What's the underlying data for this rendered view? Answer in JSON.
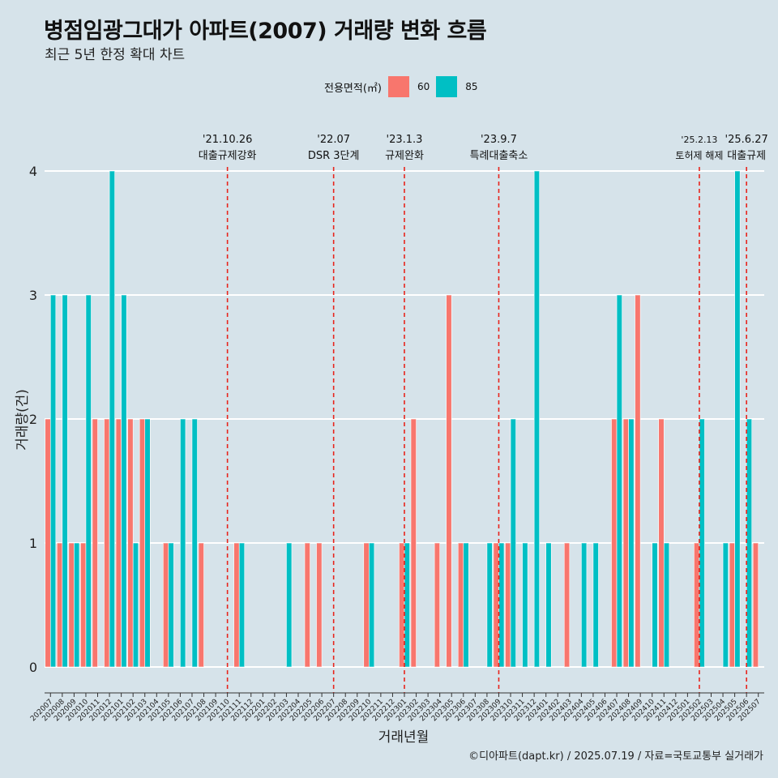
{
  "title": "병점임광그대가 아파트(2007) 거래량 변화 흐름",
  "subtitle": "최근 5년 한정 확대 차트",
  "legend": {
    "title": "전용면적(㎡)",
    "items": [
      {
        "label": "60",
        "color": "#f8766d"
      },
      {
        "label": "85",
        "color": "#00bfc4"
      }
    ]
  },
  "caption": "©디아파트(dapt.kr) / 2025.07.19 / 자료=국토교통부 실거래가",
  "chart_data": {
    "type": "bar",
    "title": "병점임광그대가 아파트(2007) 거래량 변화 흐름",
    "subtitle": "최근 5년 한정 확대 차트",
    "xlabel": "거래년월",
    "ylabel": "거래량(건)",
    "ylim": [
      0,
      4
    ],
    "yticks": [
      0,
      1,
      2,
      3,
      4
    ],
    "grid": true,
    "legend_position": "top",
    "categories": [
      "202007",
      "202008",
      "202009",
      "202010",
      "202011",
      "202012",
      "202101",
      "202102",
      "202103",
      "202104",
      "202105",
      "202106",
      "202107",
      "202108",
      "202109",
      "202110",
      "202111",
      "202112",
      "202201",
      "202202",
      "202203",
      "202204",
      "202205",
      "202206",
      "202207",
      "202208",
      "202209",
      "202210",
      "202211",
      "202212",
      "202301",
      "202302",
      "202303",
      "202304",
      "202305",
      "202306",
      "202307",
      "202308",
      "202309",
      "202310",
      "202311",
      "202312",
      "202401",
      "202402",
      "202403",
      "202404",
      "202405",
      "202406",
      "202407",
      "202408",
      "202409",
      "202410",
      "202411",
      "202412",
      "202501",
      "202502",
      "202503",
      "202504",
      "202505",
      "202506",
      "202507"
    ],
    "series": [
      {
        "name": "60",
        "color": "#f8766d",
        "values": [
          2,
          1,
          1,
          1,
          2,
          2,
          2,
          2,
          2,
          0,
          1,
          0,
          0,
          1,
          0,
          0,
          1,
          0,
          0,
          0,
          0,
          0,
          1,
          1,
          0,
          0,
          0,
          1,
          0,
          0,
          1,
          2,
          0,
          1,
          3,
          1,
          0,
          0,
          1,
          1,
          0,
          0,
          0,
          0,
          1,
          0,
          0,
          0,
          2,
          2,
          3,
          0,
          2,
          0,
          0,
          1,
          0,
          0,
          1,
          0,
          1
        ]
      },
      {
        "name": "85",
        "color": "#00bfc4",
        "values": [
          3,
          3,
          1,
          3,
          0,
          4,
          3,
          1,
          2,
          0,
          1,
          2,
          2,
          0,
          0,
          0,
          1,
          0,
          0,
          0,
          1,
          0,
          0,
          0,
          0,
          0,
          0,
          1,
          0,
          0,
          1,
          0,
          0,
          0,
          0,
          1,
          0,
          1,
          1,
          2,
          1,
          4,
          1,
          0,
          0,
          1,
          1,
          0,
          3,
          2,
          0,
          1,
          1,
          0,
          0,
          2,
          0,
          1,
          4,
          2,
          0
        ]
      }
    ],
    "annotations": [
      {
        "x": "202110",
        "date": "'21.10.26",
        "label": "대출규제강화"
      },
      {
        "x": "202207",
        "date": "'22.07",
        "label": "DSR 3단계"
      },
      {
        "x": "202301",
        "date": "'23.1.3",
        "label": "규제완화"
      },
      {
        "x": "202309",
        "date": "'23.9.7",
        "label": "특례대출축소"
      },
      {
        "x": "202502",
        "date": "'25.2.13",
        "label": "토허제 해제"
      },
      {
        "x": "202506",
        "date": "'25.6.27",
        "label": "대출규제"
      }
    ]
  }
}
